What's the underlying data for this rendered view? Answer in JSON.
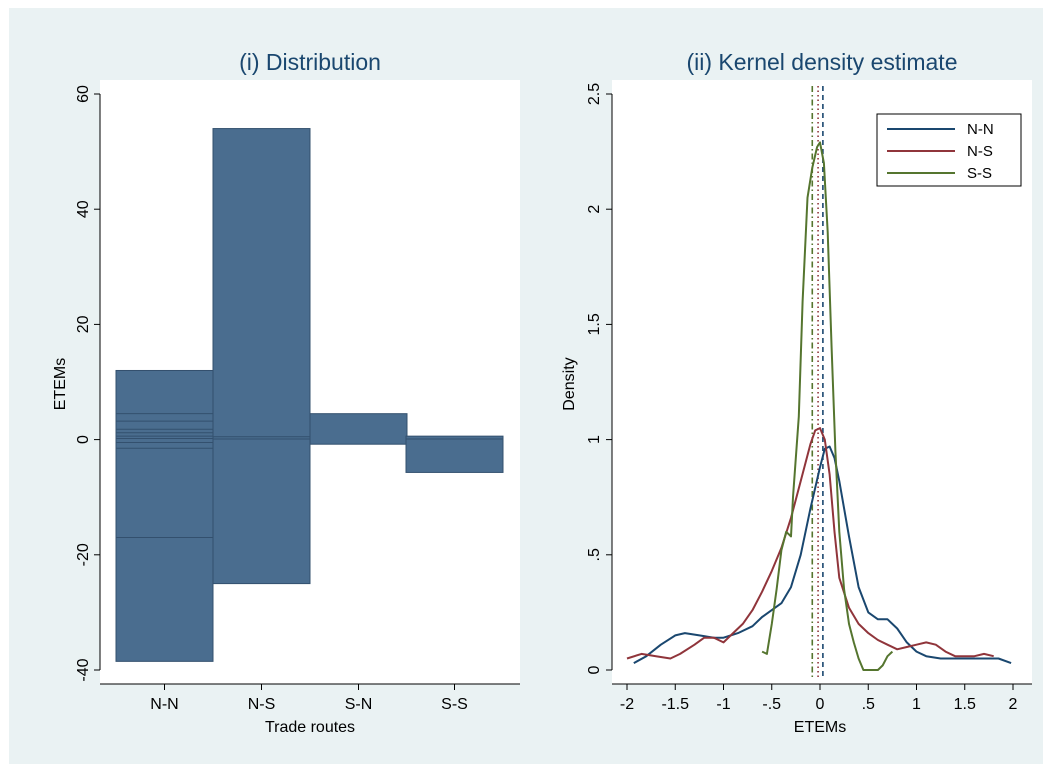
{
  "colors": {
    "figure_background": "#eaf2f3",
    "plot_background": "#ffffff",
    "bar_fill": "#4a6d8f",
    "bar_edge": "#33506e",
    "title": "#1a476f"
  },
  "chart_data": [
    {
      "type": "bar",
      "title": "(i) Distribution",
      "xlabel": "Trade routes",
      "ylabel": "ETEMs",
      "categories": [
        "N-N",
        "N-S",
        "S-N",
        "S-S"
      ],
      "ylim": [
        -40,
        60
      ],
      "yticks": [
        -40,
        -20,
        0,
        20,
        40,
        60
      ],
      "ytick_labels": [
        "-40",
        "-20",
        "0",
        "20",
        "40",
        "60"
      ],
      "grid": false,
      "range": [
        {
          "category": "N-N",
          "min": -38.5,
          "max": 12
        },
        {
          "category": "N-S",
          "min": -25,
          "max": 54
        },
        {
          "category": "S-N",
          "min": -0.8,
          "max": 4.5
        },
        {
          "category": "S-S",
          "min": -5.7,
          "max": 0.6
        }
      ],
      "inner_lines": [
        {
          "category": "N-N",
          "values": [
            4.5,
            3.2,
            1.8,
            1.2,
            0.6,
            0.2,
            -0.5,
            -1.5,
            -17
          ]
        },
        {
          "category": "N-S",
          "values": [
            0.5,
            0.1
          ]
        },
        {
          "category": "S-S",
          "values": [
            0.1
          ]
        }
      ],
      "color": "#4a6d8f"
    },
    {
      "type": "line",
      "title": "(ii) Kernel density estimate",
      "xlabel": "ETEMs",
      "ylabel": "Density",
      "xlim": [
        -2,
        2
      ],
      "ylim": [
        0,
        2.5
      ],
      "xticks": [
        -2,
        -1.5,
        -1,
        -0.5,
        0,
        0.5,
        1,
        1.5,
        2
      ],
      "xtick_labels": [
        "-2",
        "-1.5",
        "-1",
        "-.5",
        "0",
        ".5",
        "1",
        "1.5",
        "2"
      ],
      "yticks": [
        0,
        0.5,
        1,
        1.5,
        2,
        2.5
      ],
      "ytick_labels": [
        "0",
        ".5",
        "1",
        "1.5",
        "2",
        "2.5"
      ],
      "grid": false,
      "legend": {
        "position": "top-right",
        "entries": [
          "N-N",
          "N-S",
          "S-S"
        ]
      },
      "series": [
        {
          "name": "N-N",
          "color": "#1a476f",
          "points": [
            [
              -1.93,
              0.03
            ],
            [
              -1.8,
              0.06
            ],
            [
              -1.65,
              0.11
            ],
            [
              -1.5,
              0.15
            ],
            [
              -1.4,
              0.16
            ],
            [
              -1.25,
              0.15
            ],
            [
              -1.1,
              0.14
            ],
            [
              -1.0,
              0.14
            ],
            [
              -0.85,
              0.16
            ],
            [
              -0.7,
              0.19
            ],
            [
              -0.6,
              0.23
            ],
            [
              -0.5,
              0.26
            ],
            [
              -0.4,
              0.29
            ],
            [
              -0.3,
              0.36
            ],
            [
              -0.2,
              0.5
            ],
            [
              -0.1,
              0.7
            ],
            [
              0.0,
              0.88
            ],
            [
              0.05,
              0.96
            ],
            [
              0.1,
              0.97
            ],
            [
              0.15,
              0.92
            ],
            [
              0.2,
              0.82
            ],
            [
              0.3,
              0.58
            ],
            [
              0.4,
              0.36
            ],
            [
              0.5,
              0.25
            ],
            [
              0.6,
              0.22
            ],
            [
              0.7,
              0.22
            ],
            [
              0.8,
              0.18
            ],
            [
              0.9,
              0.12
            ],
            [
              1.0,
              0.08
            ],
            [
              1.1,
              0.06
            ],
            [
              1.25,
              0.05
            ],
            [
              1.4,
              0.05
            ],
            [
              1.55,
              0.05
            ],
            [
              1.7,
              0.05
            ],
            [
              1.85,
              0.05
            ],
            [
              1.98,
              0.03
            ]
          ]
        },
        {
          "name": "N-S",
          "color": "#90353b",
          "points": [
            [
              -2.0,
              0.05
            ],
            [
              -1.85,
              0.07
            ],
            [
              -1.7,
              0.06
            ],
            [
              -1.55,
              0.05
            ],
            [
              -1.45,
              0.07
            ],
            [
              -1.3,
              0.11
            ],
            [
              -1.2,
              0.14
            ],
            [
              -1.1,
              0.14
            ],
            [
              -1.0,
              0.12
            ],
            [
              -0.9,
              0.16
            ],
            [
              -0.8,
              0.2
            ],
            [
              -0.7,
              0.26
            ],
            [
              -0.6,
              0.34
            ],
            [
              -0.5,
              0.43
            ],
            [
              -0.4,
              0.53
            ],
            [
              -0.3,
              0.66
            ],
            [
              -0.2,
              0.82
            ],
            [
              -0.1,
              0.98
            ],
            [
              -0.05,
              1.04
            ],
            [
              0.0,
              1.05
            ],
            [
              0.05,
              1.0
            ],
            [
              0.1,
              0.85
            ],
            [
              0.15,
              0.6
            ],
            [
              0.2,
              0.4
            ],
            [
              0.3,
              0.27
            ],
            [
              0.4,
              0.2
            ],
            [
              0.5,
              0.16
            ],
            [
              0.6,
              0.13
            ],
            [
              0.7,
              0.11
            ],
            [
              0.8,
              0.09
            ],
            [
              0.9,
              0.1
            ],
            [
              1.0,
              0.11
            ],
            [
              1.1,
              0.12
            ],
            [
              1.2,
              0.11
            ],
            [
              1.3,
              0.08
            ],
            [
              1.4,
              0.06
            ],
            [
              1.5,
              0.06
            ],
            [
              1.6,
              0.06
            ],
            [
              1.7,
              0.07
            ],
            [
              1.8,
              0.06
            ]
          ]
        },
        {
          "name": "S-S",
          "color": "#55752f",
          "points": [
            [
              -0.6,
              0.08
            ],
            [
              -0.55,
              0.07
            ],
            [
              -0.5,
              0.2
            ],
            [
              -0.45,
              0.35
            ],
            [
              -0.4,
              0.52
            ],
            [
              -0.35,
              0.6
            ],
            [
              -0.3,
              0.58
            ],
            [
              -0.28,
              0.75
            ],
            [
              -0.22,
              1.1
            ],
            [
              -0.18,
              1.6
            ],
            [
              -0.13,
              2.05
            ],
            [
              -0.08,
              2.18
            ],
            [
              -0.03,
              2.27
            ],
            [
              0.0,
              2.29
            ],
            [
              0.04,
              2.2
            ],
            [
              0.08,
              1.9
            ],
            [
              0.12,
              1.4
            ],
            [
              0.16,
              0.95
            ],
            [
              0.2,
              0.6
            ],
            [
              0.25,
              0.35
            ],
            [
              0.3,
              0.2
            ],
            [
              0.35,
              0.12
            ],
            [
              0.4,
              0.05
            ],
            [
              0.45,
              0.0
            ],
            [
              0.5,
              0.0
            ],
            [
              0.55,
              0.0
            ],
            [
              0.6,
              0.0
            ],
            [
              0.65,
              0.02
            ],
            [
              0.7,
              0.06
            ],
            [
              0.75,
              0.08
            ]
          ]
        }
      ],
      "reference_lines": [
        {
          "x": -0.08,
          "color": "#55752f",
          "style": "dash-dot"
        },
        {
          "x": -0.02,
          "color": "#90353b",
          "style": "dotted"
        },
        {
          "x": 0.03,
          "color": "#1a476f",
          "style": "dashed"
        }
      ]
    }
  ]
}
